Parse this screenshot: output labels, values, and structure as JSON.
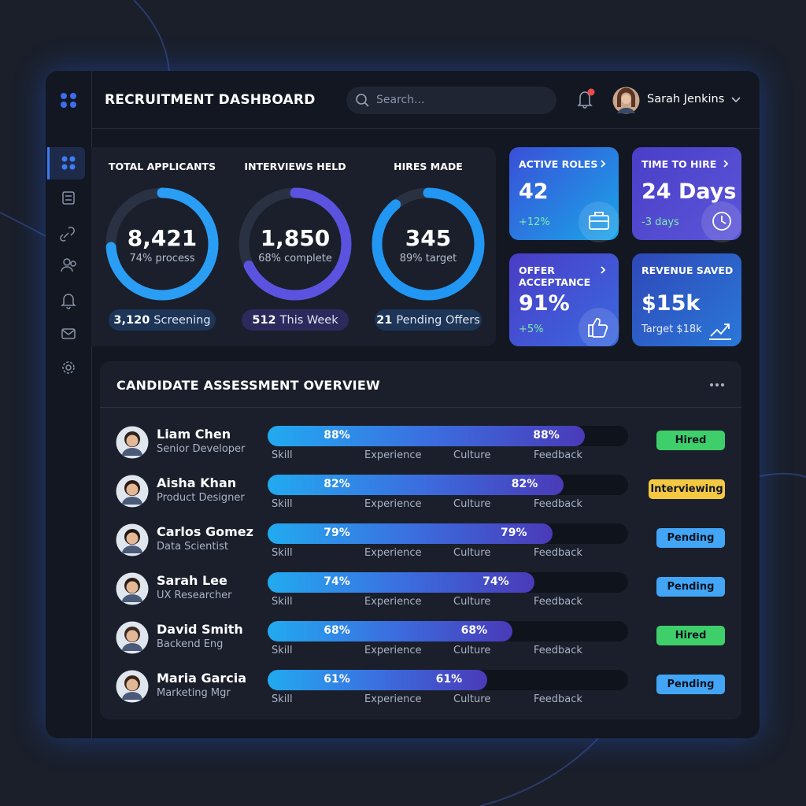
{
  "header": {
    "title": "RECRUITMENT DASHBOARD",
    "search_placeholder": "Search...",
    "user_name": "Sarah Jenkins"
  },
  "rings": [
    {
      "label": "TOTAL APPLICANTS",
      "value": "8,421",
      "caption": "74% process",
      "progress": 74,
      "badge_value": "3,120",
      "badge_text": "Screening",
      "color": "#2a9df4"
    },
    {
      "label": "INTERVIEWS HELD",
      "value": "1,850",
      "caption": "68% complete",
      "progress": 68,
      "badge_value": "512",
      "badge_text": "This Week",
      "color": "#5b52e0"
    },
    {
      "label": "HIRES MADE",
      "value": "345",
      "caption": "89% target",
      "progress": 89,
      "badge_value": "21",
      "badge_text": "Pending Offers",
      "color": "#2196f3"
    }
  ],
  "cards": [
    {
      "title": "ACTIVE ROLES",
      "value": "42",
      "note": "+12%"
    },
    {
      "title": "TIME TO HIRE",
      "value": "24 Days",
      "note": "-3 days"
    },
    {
      "title": "OFFER ACCEPTANCE",
      "value": "91%",
      "note": "+5%"
    },
    {
      "title": "REVENUE SAVED",
      "value": "$15k",
      "note": "Target $18k"
    }
  ],
  "assessment": {
    "title": "CANDIDATE ASSESSMENT OVERVIEW",
    "columns": [
      "Skill",
      "Experience",
      "Culture",
      "Feedback"
    ],
    "rows": [
      {
        "name": "Liam Chen",
        "role": "Senior Developer",
        "score": 88,
        "score_label": "88%",
        "status": "Hired",
        "status_color": "#3ecf6a"
      },
      {
        "name": "Aisha Khan",
        "role": "Product Designer",
        "score": 82,
        "score_label": "82%",
        "status": "Interviewing",
        "status_color": "#f5c842"
      },
      {
        "name": "Carlos Gomez",
        "role": "Data Scientist",
        "score": 79,
        "score_label": "79%",
        "status": "Pending",
        "status_color": "#42a5f5"
      },
      {
        "name": "Sarah Lee",
        "role": "UX Researcher",
        "score": 74,
        "score_label": "74%",
        "status": "Pending",
        "status_color": "#42a5f5"
      },
      {
        "name": "David Smith",
        "role": "Backend Eng",
        "score": 68,
        "score_label": "68%",
        "status": "Hired",
        "status_color": "#3ecf6a"
      },
      {
        "name": "Maria Garcia",
        "role": "Marketing Mgr",
        "score": 61,
        "score_label": "61%",
        "status": "Pending",
        "status_color": "#42a5f5"
      }
    ]
  }
}
